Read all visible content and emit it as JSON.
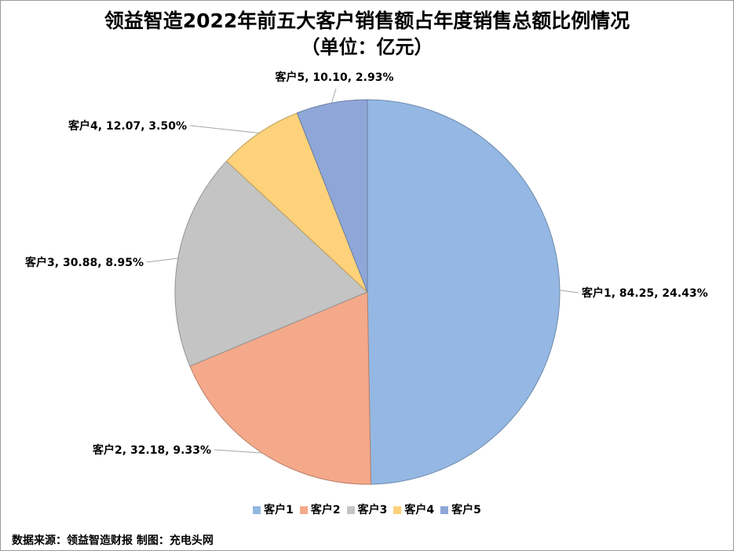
{
  "chart_data": {
    "type": "pie",
    "title": "领益智造2022年前五大客户销售额占年度销售总额比例情况",
    "subtitle": "（单位：亿元）",
    "legend_position": "bottom",
    "slices": [
      {
        "name": "客户1",
        "value": 84.25,
        "percent_label": "24.43%",
        "color": "#94b8e3"
      },
      {
        "name": "客户2",
        "value": 32.18,
        "percent_label": "9.33%",
        "color": "#f4a98a"
      },
      {
        "name": "客户3",
        "value": 30.88,
        "percent_label": "8.95%",
        "color": "#c4c4c4"
      },
      {
        "name": "客户4",
        "value": 12.07,
        "percent_label": "3.50%",
        "color": "#fdd27a"
      },
      {
        "name": "客户5",
        "value": 10.1,
        "percent_label": "2.93%",
        "color": "#8ea7d8"
      }
    ]
  },
  "legend": [
    {
      "label": "客户1",
      "color": "#94b8e3"
    },
    {
      "label": "客户2",
      "color": "#f4a98a"
    },
    {
      "label": "客户3",
      "color": "#c4c4c4"
    },
    {
      "label": "客户4",
      "color": "#fdd27a"
    },
    {
      "label": "客户5",
      "color": "#8ea7d8"
    }
  ],
  "footer": {
    "source": "数据来源：领益智造财报 制图：充电头网"
  }
}
